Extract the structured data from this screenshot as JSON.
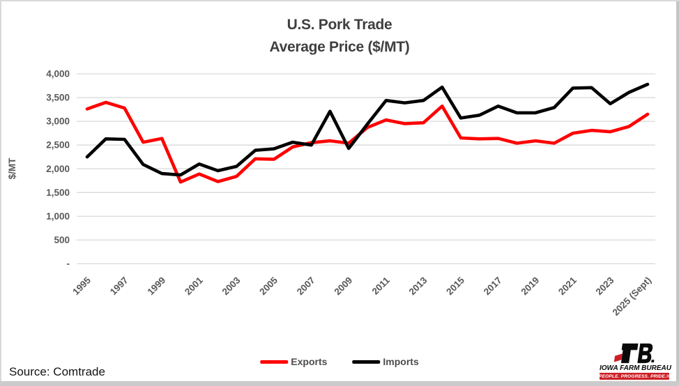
{
  "chart_data": {
    "type": "line",
    "title": "U.S. Pork Trade",
    "subtitle": "Average Price ($/MT)",
    "ylabel": "$/MT",
    "ylim": [
      0,
      4000
    ],
    "ytick_step": 500,
    "ytick_labels": [
      "4,000",
      "3,500",
      "3,000",
      "2,500",
      "2,000",
      "1,500",
      "1,000",
      "500",
      "-"
    ],
    "grid": true,
    "legend_position": "bottom",
    "x": [
      1995,
      1996,
      1997,
      1998,
      1999,
      2000,
      2001,
      2002,
      2003,
      2004,
      2005,
      2006,
      2007,
      2008,
      2009,
      2010,
      2011,
      2012,
      2013,
      2014,
      2015,
      2016,
      2017,
      2018,
      2019,
      2020,
      2021,
      2022,
      2023,
      2024,
      2025
    ],
    "xtick_labels": [
      "1995",
      "1997",
      "1999",
      "2001",
      "2003",
      "2005",
      "2007",
      "2009",
      "2011",
      "2013",
      "2015",
      "2017",
      "2019",
      "2021",
      "2023",
      "2025 (Sept)"
    ],
    "series": [
      {
        "name": "Exports",
        "color": "#FF0000",
        "values": [
          3260,
          3400,
          3280,
          2560,
          2640,
          1720,
          1890,
          1730,
          1840,
          2210,
          2200,
          2460,
          2550,
          2590,
          2540,
          2870,
          3030,
          2950,
          2970,
          3320,
          2650,
          2630,
          2640,
          2540,
          2590,
          2540,
          2750,
          2810,
          2780,
          2890,
          3150
        ]
      },
      {
        "name": "Imports",
        "color": "#000000",
        "values": [
          2250,
          2630,
          2620,
          2090,
          1900,
          1870,
          2100,
          1960,
          2050,
          2390,
          2420,
          2560,
          2500,
          3210,
          2430,
          2940,
          3440,
          3390,
          3440,
          3720,
          3070,
          3130,
          3320,
          3180,
          3180,
          3290,
          3700,
          3710,
          3370,
          3610,
          3780
        ]
      }
    ]
  },
  "footer": {
    "source_note": "Source: Comtrade"
  },
  "logo": {
    "monogram": "FB",
    "brand": "IOWA FARM BUREAU",
    "tagline": "PEOPLE. PROGRESS. PRIDE.®",
    "banner_color": "#cc2027"
  },
  "colors": {
    "title_text": "#3f3f3f",
    "axis_text": "#595959",
    "gridline": "#d9d9d9",
    "exports_line": "#FF0000",
    "imports_line": "#000000"
  }
}
